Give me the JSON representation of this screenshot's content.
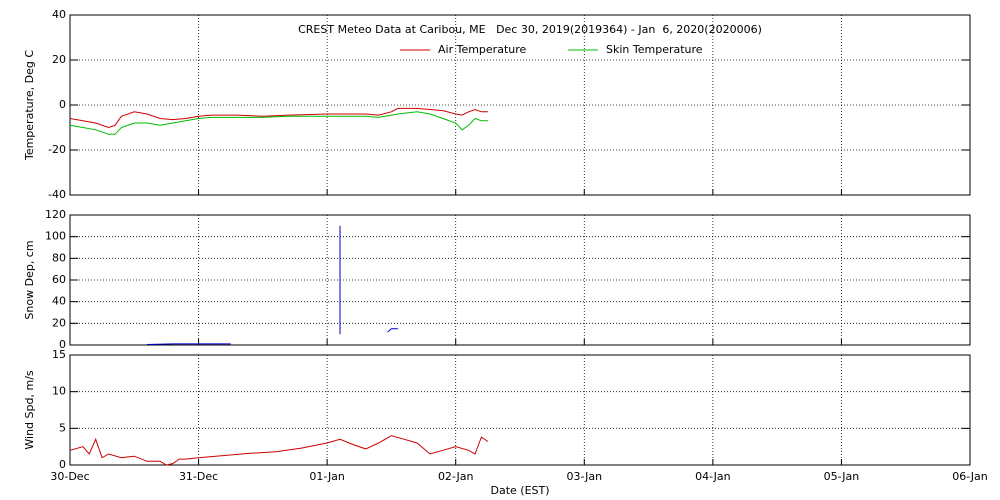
{
  "chart_data": [
    {
      "type": "line",
      "title": "CREST Meteo Data at Caribou, ME   Dec 30, 2019(2019364) - Jan  6, 2020(2020006)",
      "y_label": "Temperature, Deg C",
      "legend": "top-center",
      "ylim": [
        -40,
        40
      ],
      "yticks": [
        -40,
        -20,
        0,
        20,
        40
      ],
      "grid": true,
      "x": [
        0,
        0.1,
        0.2,
        0.3,
        0.35,
        0.4,
        0.5,
        0.6,
        0.7,
        0.8,
        0.9,
        1.0,
        1.1,
        1.3,
        1.5,
        1.7,
        2.0,
        2.3,
        2.4,
        2.5,
        2.55,
        2.7,
        2.8,
        2.9,
        3.0,
        3.05,
        3.1,
        3.15,
        3.2,
        3.25
      ],
      "series": [
        {
          "name": "Air Temperature",
          "color": "#cc0000",
          "values": [
            -6,
            -7,
            -8,
            -10,
            -9,
            -5,
            -3,
            -4,
            -6,
            -6.5,
            -6,
            -5,
            -4.5,
            -4.5,
            -5,
            -4.5,
            -4,
            -4,
            -4.5,
            -3,
            -1.5,
            -1.5,
            -2,
            -2.5,
            -4,
            -4.5,
            -3,
            -2,
            -3,
            -3
          ]
        },
        {
          "name": "Skin Temperature",
          "color": "#00bb00",
          "values": [
            -9,
            -10,
            -11,
            -13,
            -13,
            -10,
            -8,
            -8,
            -9,
            -8,
            -7,
            -6,
            -5.5,
            -5.5,
            -5.5,
            -5,
            -5,
            -5,
            -5.5,
            -4.5,
            -4,
            -3,
            -4,
            -6,
            -8,
            -11,
            -9,
            -6,
            -7,
            -7
          ]
        }
      ]
    },
    {
      "type": "line",
      "y_label": "Snow Dep, cm",
      "ylim": [
        0,
        120
      ],
      "yticks": [
        0,
        20,
        40,
        60,
        80,
        100,
        120
      ],
      "grid": true,
      "x": [
        0.6,
        0.8,
        1.0,
        1.2,
        1.25,
        1.5,
        2.1,
        2.1,
        2.1,
        2.3,
        2.47,
        2.5,
        2.55
      ],
      "series": [
        {
          "color": "#0000cc",
          "values": [
            0.5,
            1,
            1,
            1,
            1,
            null,
            10,
            60,
            110,
            null,
            12,
            15,
            15
          ]
        }
      ]
    },
    {
      "type": "line",
      "y_label": "Wind Spd, m/s",
      "x_label": "Date (EST)",
      "ylim": [
        0,
        15
      ],
      "yticks": [
        0,
        5,
        10,
        15
      ],
      "grid": true,
      "xlim": [
        0,
        7
      ],
      "xticks": [
        {
          "value": 0,
          "label": "30-Dec"
        },
        {
          "value": 1,
          "label": "31-Dec"
        },
        {
          "value": 2,
          "label": "01-Jan"
        },
        {
          "value": 3,
          "label": "02-Jan"
        },
        {
          "value": 4,
          "label": "03-Jan"
        },
        {
          "value": 5,
          "label": "04-Jan"
        },
        {
          "value": 6,
          "label": "05-Jan"
        },
        {
          "value": 7,
          "label": "06-Jan"
        }
      ],
      "x": [
        0,
        0.1,
        0.15,
        0.2,
        0.25,
        0.3,
        0.4,
        0.5,
        0.6,
        0.7,
        0.75,
        0.8,
        0.85,
        0.9,
        1.0,
        1.2,
        1.4,
        1.6,
        1.8,
        2.0,
        2.1,
        2.2,
        2.3,
        2.4,
        2.5,
        2.6,
        2.7,
        2.8,
        2.9,
        3.0,
        3.1,
        3.15,
        3.2,
        3.25
      ],
      "series": [
        {
          "color": "#cc0000",
          "values": [
            2,
            2.5,
            1.5,
            3.5,
            1,
            1.5,
            1,
            1.2,
            0.5,
            0.5,
            0,
            0.2,
            0.8,
            0.8,
            1,
            1.3,
            1.6,
            1.8,
            2.3,
            3,
            3.5,
            2.8,
            2.2,
            3,
            4,
            3.5,
            3,
            1.5,
            2,
            2.5,
            2,
            1.5,
            3.8,
            3.2
          ]
        }
      ]
    }
  ]
}
